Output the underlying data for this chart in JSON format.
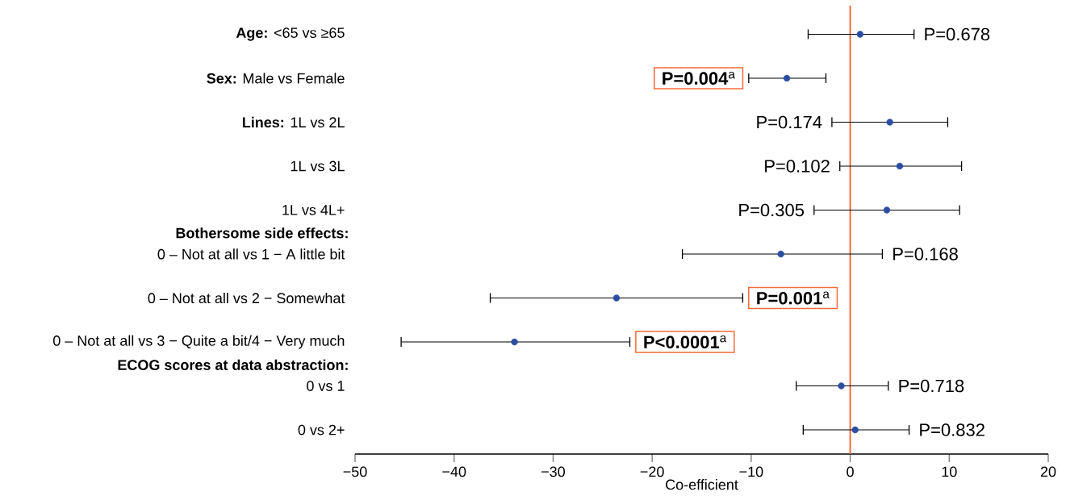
{
  "chart_data": {
    "type": "scatter",
    "orientation": "horizontal",
    "categories": [
      "**Age:** <65 vs ≥65",
      "**Sex:** Male vs Female",
      "**Lines:** 1L vs 2L",
      "1L vs 3L",
      "1L vs 4L+",
      "0 – Not at all vs 1 − A little bit",
      "0 – Not at all vs 2 − Somewhat",
      "0 – Not at all vs 3 − Quite a bit/4 − Very much",
      "0 vs 1",
      "0 vs 2+"
    ],
    "values": [
      1.0,
      -6.4,
      4.0,
      5.0,
      3.7,
      -7.0,
      -23.6,
      -33.9,
      -0.9,
      0.5
    ],
    "errors": [
      [
        -4.3,
        6.5
      ],
      [
        -10.3,
        -2.4
      ],
      [
        -1.9,
        9.9
      ],
      [
        -1.1,
        11.3
      ],
      [
        -3.7,
        11.1
      ],
      [
        -17.0,
        3.3
      ],
      [
        -36.4,
        -10.8
      ],
      [
        -45.4,
        -22.2
      ],
      [
        -5.5,
        3.9
      ],
      [
        -4.8,
        6.0
      ]
    ],
    "color": "#2b4ea2",
    "xlabel": "Co-efficient",
    "xlim": [
      -50,
      20
    ],
    "xticks": [
      {
        "value": -50,
        "label": "−50"
      },
      {
        "value": -40,
        "label": "−40"
      },
      {
        "value": -30,
        "label": "−30"
      },
      {
        "value": -20,
        "label": "−20"
      },
      {
        "value": -10,
        "label": "−10"
      },
      0,
      10,
      20
    ],
    "ref_lines": [
      {
        "axis": "x",
        "value": 0,
        "color": "#f26b3a"
      }
    ],
    "annotations": [
      "Bothersome side effects:",
      "ECOG scores at data abstraction:",
      {
        "text": "P=0.678",
        "x": 6.5,
        "y": "**Age:** <65 vs ≥65"
      },
      {
        "text": "**P=0.004**$^{a}$",
        "x": -10.3,
        "y": "**Sex:** Male vs Female"
      },
      {
        "text": "P=0.174",
        "x": -1.9,
        "y": "**Lines:** 1L vs 2L"
      },
      {
        "text": "P=0.102",
        "x": -1.1,
        "y": "1L vs 3L"
      },
      {
        "text": "P=0.305",
        "x": -3.7,
        "y": "1L vs 4L+"
      },
      {
        "text": "P=0.168",
        "x": 3.3,
        "y": "0 – Not at all vs 1 − A little bit"
      },
      {
        "text": "**P=0.001**$^{a}$",
        "x": -10.8,
        "y": "0 – Not at all vs 2 − Somewhat"
      },
      {
        "text": "**P<0.0001**$^{a}$",
        "x": -22.2,
        "y": "0 – Not at all vs 3 − Quite a bit/4 − Very much"
      },
      {
        "text": "P=0.718",
        "x": 3.9,
        "y": "0 vs 1"
      },
      {
        "text": "P=0.832",
        "x": 6.0,
        "y": "0 vs 2+"
      }
    ]
  }
}
